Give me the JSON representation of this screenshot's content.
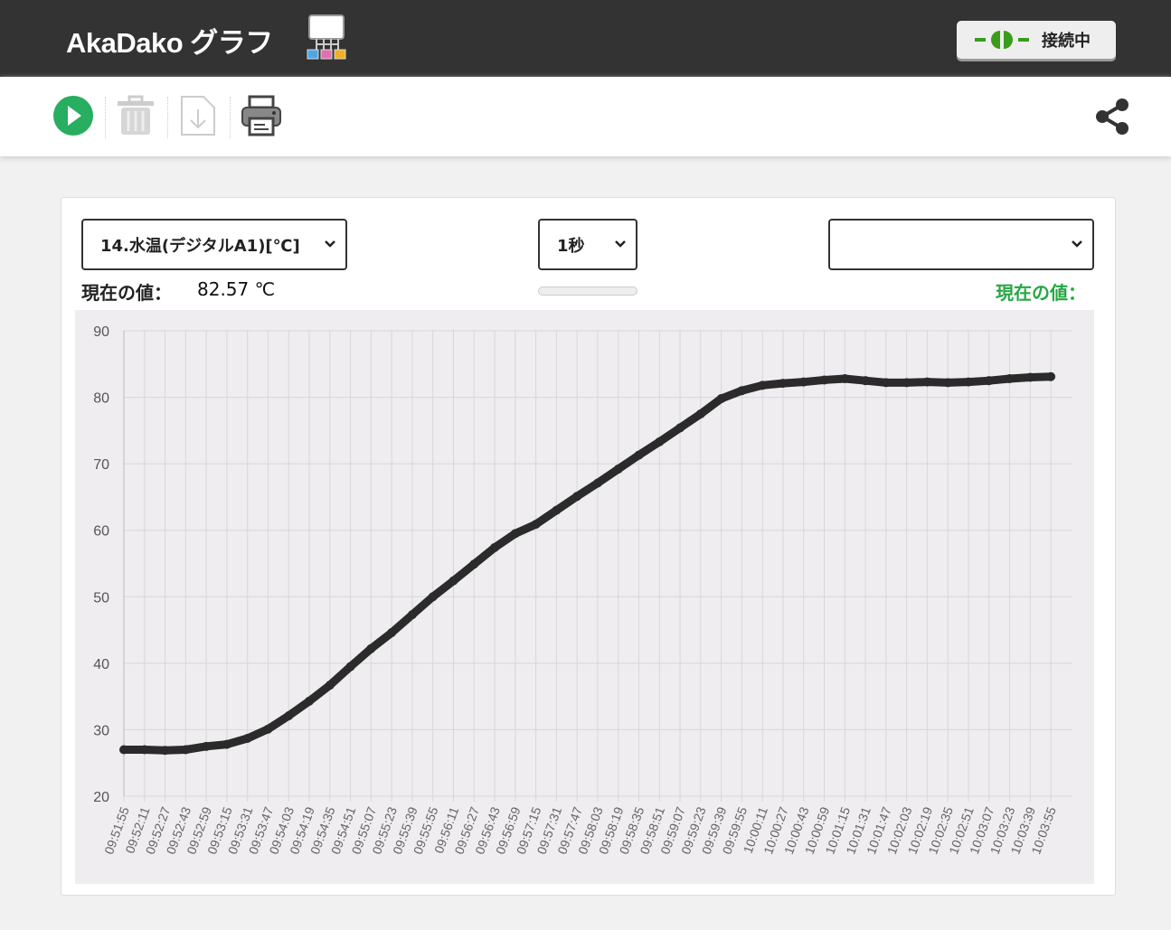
{
  "header": {
    "title": "AkaDako グラフ",
    "connection_label": "接続中",
    "connection_color": "#3a9c1a"
  },
  "toolbar": {
    "icons": [
      "play-icon",
      "trash-icon",
      "download-icon",
      "print-icon",
      "share-icon"
    ],
    "play_color": "#27ae60"
  },
  "controls": {
    "sensor_select": "14.水温(デジタルA1)[℃]",
    "interval_select": "1秒",
    "second_select": "",
    "current_label_left": "現在の値：",
    "current_value_left": "82.57 ℃",
    "current_label_right": "現在の値：",
    "right_label_color": "#27a844"
  },
  "chart_data": {
    "type": "line",
    "ylim": [
      20,
      90
    ],
    "yticks": [
      "20",
      "30",
      "40",
      "50",
      "60",
      "70",
      "80",
      "90"
    ],
    "grid": true,
    "line_color": "#2b2b2b",
    "x": [
      "09:51:55",
      "09:52:11",
      "09:52:27",
      "09:52:43",
      "09:52:59",
      "09:53:15",
      "09:53:31",
      "09:53:47",
      "09:54:03",
      "09:54:19",
      "09:54:35",
      "09:54:51",
      "09:55:07",
      "09:55:23",
      "09:55:39",
      "09:55:55",
      "09:56:11",
      "09:56:27",
      "09:56:43",
      "09:56:59",
      "09:57:15",
      "09:57:31",
      "09:57:47",
      "09:58:03",
      "09:58:19",
      "09:58:35",
      "09:58:51",
      "09:59:07",
      "09:59:23",
      "09:59:39",
      "09:59:55",
      "10:00:11",
      "10:00:27",
      "10:00:43",
      "10:00:59",
      "10:01:15",
      "10:01:31",
      "10:01:47",
      "10:02:03",
      "10:02:19",
      "10:02:35",
      "10:02:51",
      "10:03:07",
      "10:03:23",
      "10:03:39",
      "10:03:55"
    ],
    "values": [
      27.0,
      27.0,
      26.9,
      27.0,
      27.5,
      27.8,
      28.7,
      30.1,
      32.1,
      34.3,
      36.7,
      39.5,
      42.2,
      44.6,
      47.3,
      50.0,
      52.4,
      54.9,
      57.4,
      59.5,
      60.9,
      63.0,
      65.1,
      67.1,
      69.2,
      71.3,
      73.3,
      75.4,
      77.5,
      79.8,
      81.0,
      81.8,
      82.1,
      82.3,
      82.6,
      82.8,
      82.5,
      82.2,
      82.2,
      82.3,
      82.2,
      82.3,
      82.5,
      82.8,
      83.0,
      83.1
    ]
  }
}
